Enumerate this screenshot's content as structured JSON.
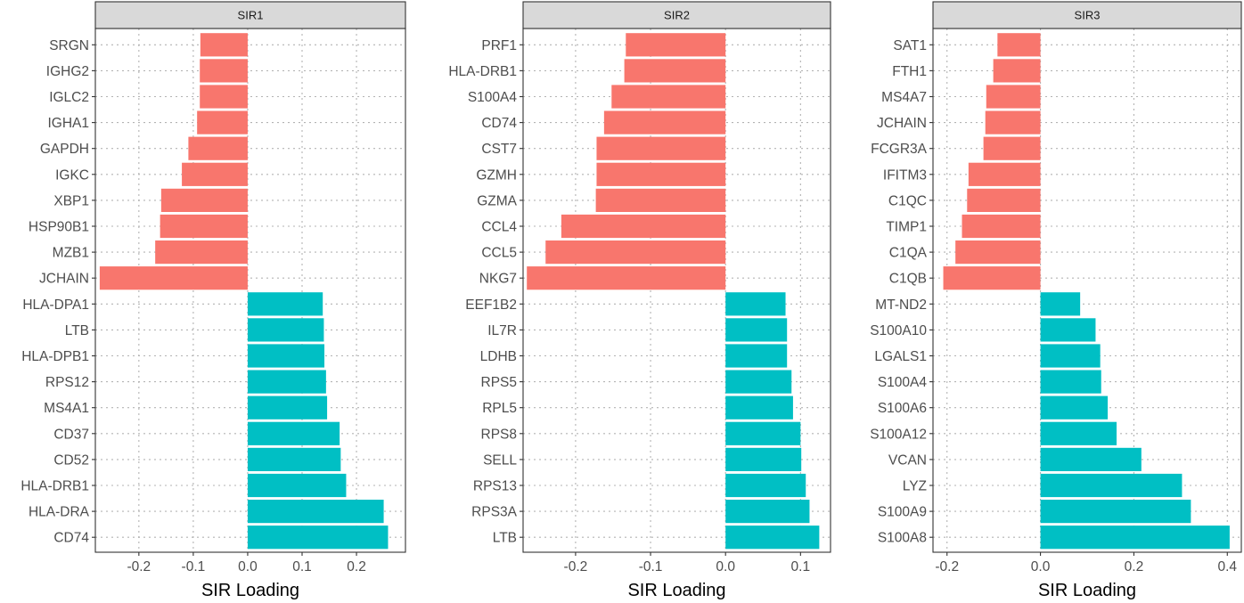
{
  "colors": {
    "negative": "#f8766d",
    "positive": "#00bfc4"
  },
  "chart_data": [
    {
      "type": "bar",
      "orientation": "horizontal",
      "title": "SIR1",
      "xlabel": "SIR Loading",
      "ylabel": "",
      "xlim": [
        -0.28,
        0.29
      ],
      "xticks": [
        -0.2,
        -0.1,
        0.0,
        0.1,
        0.2
      ],
      "xtick_labels": [
        "-0.2",
        "-0.1",
        "0.0",
        "0.1",
        "0.2"
      ],
      "grid": true,
      "categories": [
        "SRGN",
        "IGHG2",
        "IGLC2",
        "IGHA1",
        "GAPDH",
        "IGKC",
        "XBP1",
        "HSP90B1",
        "MZB1",
        "JCHAIN",
        "HLA-DPA1",
        "LTB",
        "HLA-DPB1",
        "RPS12",
        "MS4A1",
        "CD37",
        "CD52",
        "HLA-DRB1",
        "HLA-DRA",
        "CD74"
      ],
      "values": [
        -0.087,
        -0.088,
        -0.088,
        -0.093,
        -0.109,
        -0.121,
        -0.159,
        -0.161,
        -0.17,
        -0.272,
        0.138,
        0.14,
        0.141,
        0.144,
        0.146,
        0.169,
        0.171,
        0.181,
        0.25,
        0.258
      ]
    },
    {
      "type": "bar",
      "orientation": "horizontal",
      "title": "SIR2",
      "xlabel": "SIR Loading",
      "ylabel": "",
      "xlim": [
        -0.27,
        0.14
      ],
      "xticks": [
        -0.2,
        -0.1,
        0.0,
        0.1
      ],
      "xtick_labels": [
        "-0.2",
        "-0.1",
        "0.0",
        "0.1"
      ],
      "grid": true,
      "categories": [
        "PRF1",
        "HLA-DRB1",
        "S100A4",
        "CD74",
        "CST7",
        "GZMH",
        "GZMA",
        "CCL4",
        "CCL5",
        "NKG7",
        "EEF1B2",
        "IL7R",
        "LDHB",
        "RPS5",
        "RPL5",
        "RPS8",
        "SELL",
        "RPS13",
        "RPS3A",
        "LTB"
      ],
      "values": [
        -0.133,
        -0.135,
        -0.152,
        -0.162,
        -0.172,
        -0.172,
        -0.173,
        -0.219,
        -0.24,
        -0.265,
        0.08,
        0.082,
        0.082,
        0.088,
        0.09,
        0.1,
        0.101,
        0.107,
        0.112,
        0.125
      ]
    },
    {
      "type": "bar",
      "orientation": "horizontal",
      "title": "SIR3",
      "xlabel": "SIR Loading",
      "ylabel": "",
      "xlim": [
        -0.23,
        0.43
      ],
      "xticks": [
        -0.2,
        0.0,
        0.2,
        0.4
      ],
      "xtick_labels": [
        "-0.2",
        "0.0",
        "0.2",
        "0.4"
      ],
      "grid": true,
      "categories": [
        "SAT1",
        "FTH1",
        "MS4A7",
        "JCHAIN",
        "FCGR3A",
        "IFITM3",
        "C1QC",
        "TIMP1",
        "C1QA",
        "C1QB",
        "MT-ND2",
        "S100A10",
        "LGALS1",
        "S100A4",
        "S100A6",
        "S100A12",
        "VCAN",
        "LYZ",
        "S100A9",
        "S100A8"
      ],
      "values": [
        -0.092,
        -0.101,
        -0.116,
        -0.118,
        -0.122,
        -0.154,
        -0.157,
        -0.168,
        -0.182,
        -0.208,
        0.085,
        0.118,
        0.128,
        0.13,
        0.144,
        0.163,
        0.216,
        0.303,
        0.322,
        0.405
      ]
    }
  ]
}
